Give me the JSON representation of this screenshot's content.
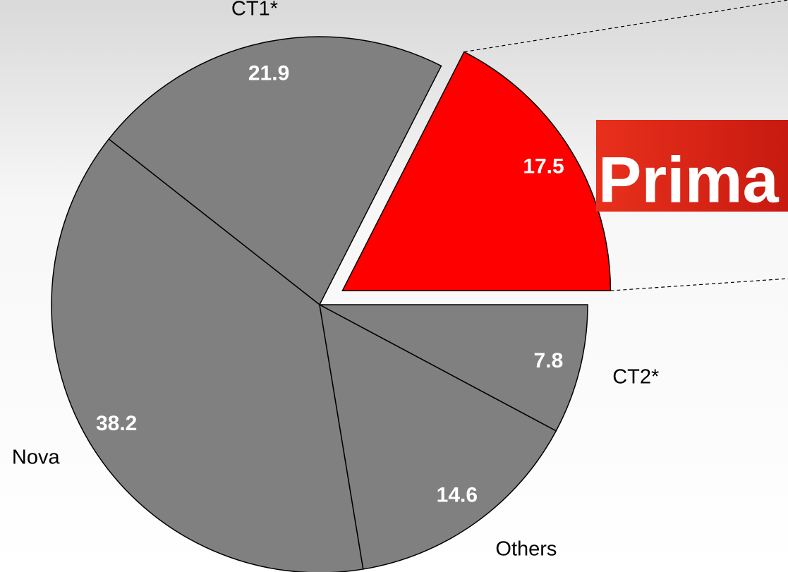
{
  "chart_data": {
    "type": "pie",
    "categories": [
      "Prima",
      "CT1*",
      "Nova",
      "Others",
      "CT2*"
    ],
    "values": [
      17.5,
      21.9,
      38.2,
      14.6,
      7.8
    ],
    "colors": [
      "#ff0000",
      "#808080",
      "#808080",
      "#808080",
      "#808080"
    ],
    "exploded": "Prima"
  }
}
